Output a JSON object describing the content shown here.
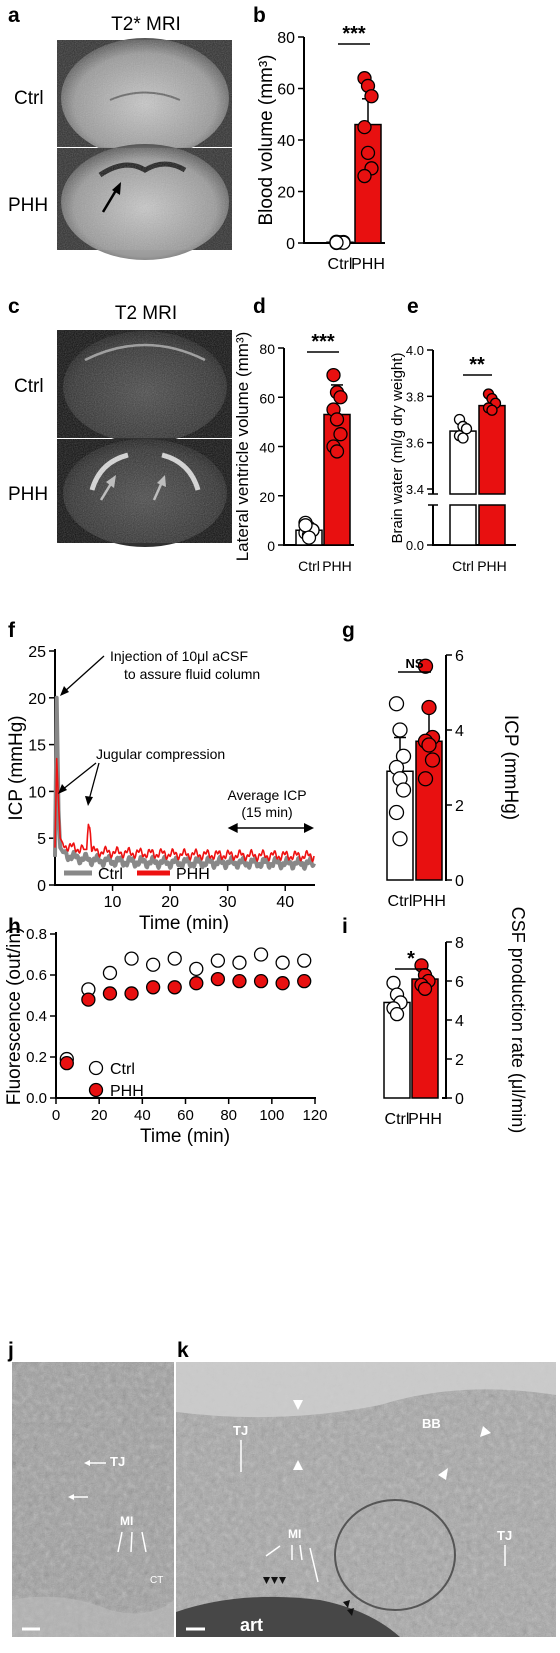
{
  "panel_letters": [
    "a",
    "b",
    "c",
    "d",
    "e",
    "f",
    "g",
    "h",
    "i",
    "j",
    "k"
  ],
  "colors": {
    "ctrl": "#ffffff",
    "phh": "#e81010",
    "phh_line": "#ee1111",
    "ctrl_line": "#888888",
    "axis": "#000000"
  },
  "panel_a": {
    "title": "T2* MRI",
    "rows": [
      "Ctrl",
      "PHH"
    ]
  },
  "panel_c": {
    "title": "T2 MRI",
    "rows": [
      "Ctrl",
      "PHH"
    ]
  },
  "panel_j": {
    "labels": [
      "TJ",
      "MI",
      "CT"
    ]
  },
  "panel_k": {
    "labels": [
      "TJ",
      "BB",
      "MI",
      "TJ",
      "art"
    ]
  },
  "chart_data": [
    {
      "id": "b",
      "type": "bar",
      "categories": [
        "Ctrl",
        "PHH"
      ],
      "ylabel": "Blood volume (mm³)",
      "ylim": [
        0,
        80
      ],
      "yticks": [
        0,
        20,
        40,
        60,
        80
      ],
      "series": [
        {
          "name": "Ctrl",
          "mean": 0.3,
          "sd": 0.3,
          "points": [
            0,
            0.2,
            0.4,
            0.5,
            0.3,
            0.1,
            0.2
          ]
        },
        {
          "name": "PHH",
          "mean": 46,
          "sd": 10,
          "points": [
            64,
            61,
            57,
            45,
            35,
            29,
            26
          ]
        }
      ],
      "significance": "***"
    },
    {
      "id": "d",
      "type": "bar",
      "categories": [
        "Ctrl",
        "PHH"
      ],
      "ylabel": "Lateral ventricle volume (mm³)",
      "ylim": [
        0,
        80
      ],
      "yticks": [
        0,
        20,
        40,
        60,
        80
      ],
      "series": [
        {
          "name": "Ctrl",
          "mean": 6,
          "sd": 2,
          "points": [
            9,
            7,
            6,
            5,
            4,
            6,
            8,
            3
          ]
        },
        {
          "name": "PHH",
          "mean": 53,
          "sd": 12,
          "points": [
            69,
            62,
            60,
            55,
            51,
            45,
            40,
            38
          ]
        }
      ],
      "significance": "***"
    },
    {
      "id": "e",
      "type": "bar",
      "categories": [
        "Ctrl",
        "PHH"
      ],
      "ylabel": "Brain water  (ml/g dry weight)",
      "yticks": [
        "0.0",
        "3.4",
        "3.6",
        "3.8",
        "4.0"
      ],
      "axis_break": true,
      "series": [
        {
          "name": "Ctrl",
          "mean": 3.65,
          "sd": 0.03,
          "points": [
            3.7,
            3.67,
            3.66,
            3.63,
            3.62
          ]
        },
        {
          "name": "PHH",
          "mean": 3.76,
          "sd": 0.03,
          "points": [
            3.81,
            3.79,
            3.77,
            3.75,
            3.74
          ]
        }
      ],
      "significance": "**"
    },
    {
      "id": "f",
      "type": "line",
      "xlabel": "Time (min)",
      "ylabel": "ICP (mmHg)",
      "xlim": [
        0,
        45
      ],
      "ylim": [
        0,
        25
      ],
      "xticks": [
        10,
        20,
        30,
        40
      ],
      "yticks": [
        0,
        5,
        10,
        15,
        20,
        25
      ],
      "series": [
        {
          "name": "Ctrl",
          "x": [
            0,
            0.3,
            0.6,
            0.9,
            1.5,
            3,
            5,
            8,
            12,
            20,
            30,
            45
          ],
          "y": [
            3,
            20,
            8,
            4,
            3.4,
            3,
            2.8,
            2.6,
            2.5,
            2.4,
            2.4,
            2.3
          ]
        },
        {
          "name": "PHH",
          "x": [
            0,
            0.3,
            0.6,
            0.9,
            1.5,
            3,
            5,
            5.5,
            5.8,
            6.5,
            10,
            20,
            30,
            45
          ],
          "y": [
            4,
            13.5,
            9,
            5,
            4.3,
            4,
            3.8,
            3.8,
            6.8,
            3.6,
            3.5,
            3.3,
            3.2,
            3.1
          ]
        }
      ],
      "annotations": [
        "Injection of 10μl aCSF",
        "to assure fluid column",
        "Jugular compression",
        "Average ICP",
        "(15 min)"
      ]
    },
    {
      "id": "g",
      "type": "bar",
      "categories": [
        "Ctrl",
        "PHH"
      ],
      "ylabel": "ICP (mmHg)",
      "ylim": [
        0,
        6
      ],
      "yticks": [
        0,
        2,
        4,
        6
      ],
      "series": [
        {
          "name": "Ctrl",
          "mean": 2.9,
          "sd": 0.9,
          "points": [
            4.7,
            4.0,
            3.3,
            3.0,
            2.7,
            2.4,
            1.8,
            1.1
          ]
        },
        {
          "name": "PHH",
          "mean": 3.7,
          "sd": 0.85,
          "points": [
            5.7,
            4.6,
            3.8,
            3.7,
            3.6,
            3.2,
            2.7
          ]
        }
      ],
      "significance": "NS"
    },
    {
      "id": "h",
      "type": "scatter",
      "xlabel": "Time (min)",
      "ylabel": "Fluorescence (out/in)",
      "xlim": [
        0,
        120
      ],
      "ylim": [
        0,
        0.8
      ],
      "xticks": [
        0,
        20,
        40,
        60,
        80,
        100,
        120
      ],
      "yticks": [
        "0.0",
        "0.2",
        "0.4",
        "0.6",
        "0.8"
      ],
      "series": [
        {
          "name": "Ctrl",
          "x": [
            5,
            15,
            25,
            35,
            45,
            55,
            65,
            75,
            85,
            95,
            105,
            115
          ],
          "y": [
            0.19,
            0.53,
            0.61,
            0.68,
            0.65,
            0.68,
            0.63,
            0.67,
            0.66,
            0.7,
            0.66,
            0.67
          ]
        },
        {
          "name": "PHH",
          "x": [
            5,
            15,
            25,
            35,
            45,
            55,
            65,
            75,
            85,
            95,
            105,
            115
          ],
          "y": [
            0.17,
            0.48,
            0.51,
            0.51,
            0.54,
            0.54,
            0.56,
            0.58,
            0.57,
            0.57,
            0.56,
            0.57
          ]
        }
      ]
    },
    {
      "id": "i",
      "type": "bar",
      "categories": [
        "Ctrl",
        "PHH"
      ],
      "ylabel": "CSF production rate (μl/min)",
      "ylim": [
        0,
        8
      ],
      "yticks": [
        0,
        2,
        4,
        6,
        8
      ],
      "series": [
        {
          "name": "Ctrl",
          "mean": 4.9,
          "sd": 0.5,
          "points": [
            5.9,
            5.3,
            4.9,
            4.6,
            4.3
          ]
        },
        {
          "name": "PHH",
          "mean": 6.1,
          "sd": 0.4,
          "points": [
            6.8,
            6.3,
            6.0,
            5.8,
            5.6
          ]
        }
      ],
      "significance": "*"
    }
  ]
}
